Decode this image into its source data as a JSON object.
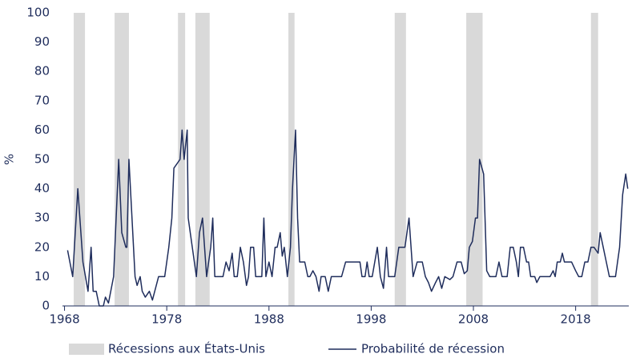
{
  "chart_data": {
    "type": "line",
    "y_label": "%",
    "xlim": [
      1967.8,
      2023.2
    ],
    "xticks": [
      1968,
      1978,
      1988,
      1998,
      2008,
      2018
    ],
    "ylim": [
      0,
      100
    ],
    "yticks": [
      0,
      10,
      20,
      30,
      40,
      50,
      60,
      70,
      80,
      90,
      100
    ],
    "grid": false,
    "legend": "bottom",
    "bands": {
      "name": "Récessions aux États-Unis",
      "color": "#d9d9d9",
      "ranges": [
        [
          1968.9,
          1970.0
        ],
        [
          1972.9,
          1974.3
        ],
        [
          1979.1,
          1979.8
        ],
        [
          1980.8,
          1982.2
        ],
        [
          1989.9,
          1990.5
        ],
        [
          2000.3,
          2001.4
        ],
        [
          2007.3,
          2008.9
        ],
        [
          2019.5,
          2020.2
        ]
      ]
    },
    "x": [
      1968.3,
      1968.8,
      1969.3,
      1969.8,
      1970.3,
      1970.6,
      1970.8,
      1971.1,
      1971.4,
      1971.8,
      1972.0,
      1972.3,
      1972.8,
      1973.3,
      1973.6,
      1974.0,
      1974.1,
      1974.3,
      1974.6,
      1974.9,
      1975.1,
      1975.4,
      1975.6,
      1975.9,
      1976.3,
      1976.6,
      1977.2,
      1977.8,
      1978.2,
      1978.5,
      1978.7,
      1979.3,
      1979.5,
      1979.7,
      1980.0,
      1980.1,
      1980.5,
      1980.9,
      1981.2,
      1981.5,
      1981.7,
      1981.9,
      1982.3,
      1982.5,
      1982.7,
      1983.5,
      1983.8,
      1984.1,
      1984.4,
      1984.6,
      1984.9,
      1985.2,
      1985.5,
      1985.8,
      1986.0,
      1986.2,
      1986.5,
      1986.7,
      1987.3,
      1987.5,
      1987.7,
      1988.0,
      1988.3,
      1988.6,
      1988.8,
      1989.1,
      1989.3,
      1989.5,
      1989.8,
      1990.1,
      1990.3,
      1990.6,
      1990.8,
      1991.0,
      1991.5,
      1991.8,
      1992.0,
      1992.3,
      1992.6,
      1992.9,
      1993.1,
      1993.5,
      1993.8,
      1994.1,
      1995.1,
      1995.5,
      1996.5,
      1996.9,
      1997.1,
      1997.4,
      1997.6,
      1997.8,
      1998.1,
      1998.6,
      1998.9,
      1999.2,
      1999.5,
      1999.7,
      2000.3,
      2000.7,
      2001.3,
      2001.7,
      2002.1,
      2002.5,
      2003.0,
      2003.3,
      2003.6,
      2003.9,
      2004.3,
      2004.6,
      2004.9,
      2005.2,
      2005.7,
      2006.0,
      2006.4,
      2006.8,
      2007.1,
      2007.4,
      2007.6,
      2007.9,
      2008.2,
      2008.4,
      2008.6,
      2009.0,
      2009.3,
      2009.6,
      2009.9,
      2010.2,
      2010.5,
      2010.8,
      2011.3,
      2011.6,
      2011.9,
      2012.2,
      2012.4,
      2012.6,
      2012.9,
      2013.2,
      2013.4,
      2013.6,
      2014.0,
      2014.2,
      2014.5,
      2015.5,
      2015.8,
      2016.0,
      2016.2,
      2016.5,
      2016.7,
      2016.9,
      2017.3,
      2017.6,
      2018.0,
      2018.3,
      2018.6,
      2018.9,
      2019.2,
      2019.5,
      2019.8,
      2020.2,
      2020.4,
      2020.7,
      2021.0,
      2021.3,
      2021.9,
      2022.3,
      2022.6,
      2022.9,
      2023.1
    ],
    "series": [
      {
        "name": "Probabilité de récession",
        "color": "#1f2d5c",
        "values": [
          19,
          10,
          40,
          15,
          5,
          20,
          5,
          5,
          0,
          0,
          3,
          1,
          10,
          50,
          25,
          20,
          20,
          50,
          30,
          10,
          7,
          10,
          5,
          3,
          5,
          2,
          10,
          10,
          20,
          30,
          47,
          50,
          60,
          50,
          60,
          30,
          20,
          10,
          25,
          30,
          20,
          10,
          20,
          30,
          10,
          10,
          15,
          12,
          18,
          10,
          10,
          20,
          15,
          7,
          10,
          20,
          20,
          10,
          10,
          30,
          10,
          15,
          10,
          20,
          20,
          25,
          17,
          20,
          10,
          20,
          40,
          60,
          30,
          15,
          15,
          10,
          10,
          12,
          10,
          5,
          10,
          10,
          5,
          10,
          10,
          15,
          15,
          15,
          10,
          10,
          15,
          10,
          10,
          20,
          10,
          6,
          20,
          10,
          10,
          20,
          20,
          30,
          10,
          15,
          15,
          10,
          8,
          5,
          8,
          10,
          6,
          10,
          9,
          10,
          15,
          15,
          11,
          12,
          20,
          22,
          30,
          30,
          50,
          45,
          12,
          10,
          10,
          10,
          15,
          10,
          10,
          20,
          20,
          15,
          10,
          20,
          20,
          15,
          15,
          10,
          10,
          8,
          10,
          10,
          12,
          10,
          15,
          15,
          18,
          15,
          15,
          15,
          12,
          10,
          10,
          15,
          15,
          20,
          20,
          18,
          25,
          20,
          15,
          10,
          10,
          20,
          38,
          45,
          40
        ]
      }
    ]
  }
}
